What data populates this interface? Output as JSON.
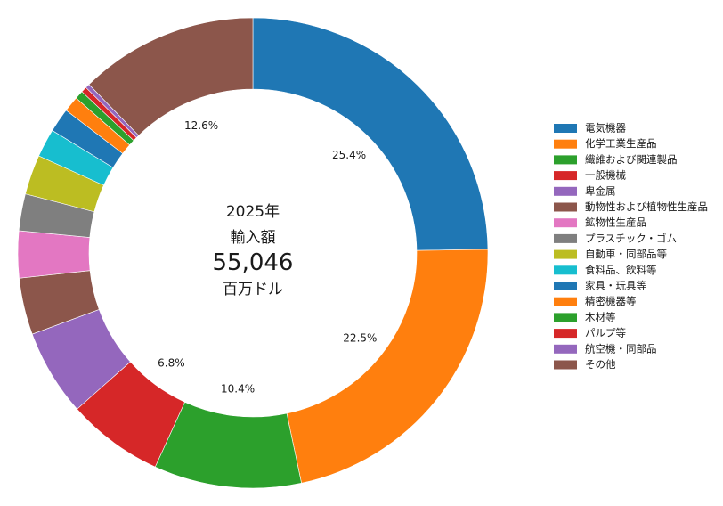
{
  "chart_data": {
    "type": "pie",
    "donut": true,
    "center": {
      "year": "2025年",
      "label": "輸入額",
      "total": "55,046",
      "unit": "百万ドル"
    },
    "legend_position": "right",
    "categories": [
      "電気機器",
      "化学工業生産品",
      "繊維および関連製品",
      "一般機械",
      "卑金属",
      "動物性および植物性生産品",
      "鉱物性生産品",
      "プラスチック・ゴム",
      "自動車・同部品等",
      "食料品、飲料等",
      "家具・玩具等",
      "精密機器等",
      "木材等",
      "パルプ等",
      "航空機・同部品",
      "その他"
    ],
    "values": [
      25.4,
      22.5,
      10.4,
      6.8,
      6.1,
      4.0,
      3.3,
      2.6,
      2.8,
      2.0,
      1.7,
      1.1,
      0.6,
      0.4,
      0.3,
      12.6
    ],
    "value_labels": [
      "25.4%",
      "22.5%",
      "10.4%",
      "6.8%",
      "",
      "",
      "",
      "",
      "",
      "",
      "",
      "",
      "",
      "",
      "",
      "12.6%"
    ],
    "colors": [
      "#1f77b4",
      "#ff7f0e",
      "#2ca02c",
      "#d62728",
      "#9467bd",
      "#8c564b",
      "#e377c2",
      "#7f7f7f",
      "#bcbd22",
      "#17becf",
      "#1f77b4",
      "#ff7f0e",
      "#2ca02c",
      "#d62728",
      "#9467bd",
      "#8c564b"
    ]
  }
}
